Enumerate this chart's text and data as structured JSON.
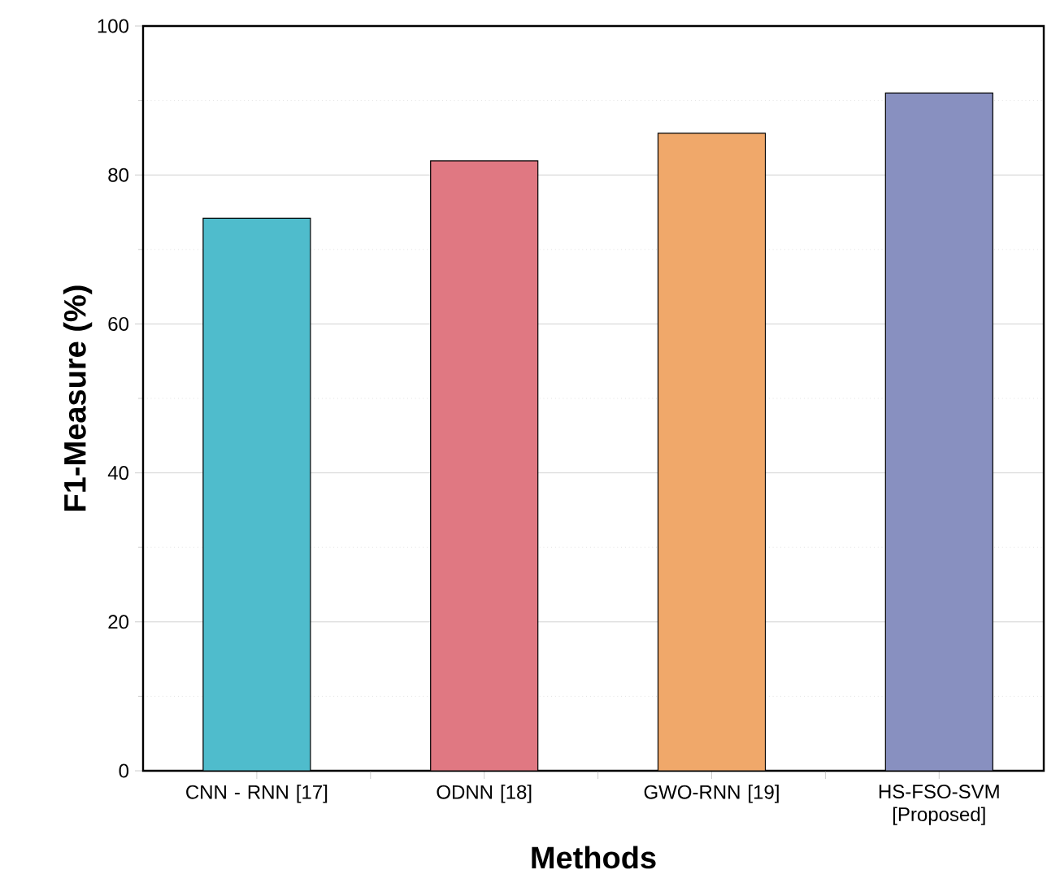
{
  "chart_data": {
    "type": "bar",
    "xlabel": "Methods",
    "ylabel": "F1-Measure (%)",
    "categories": [
      "CNN - RNN [17]",
      "ODNN [18]",
      "GWO-RNN [19]",
      "HS-FSO-SVM [Proposed]"
    ],
    "values": [
      74.2,
      81.9,
      85.6,
      91.0
    ],
    "colors": [
      "#4fbccc",
      "#e07882",
      "#f0a86a",
      "#8890c0"
    ],
    "ylim": [
      0,
      100
    ],
    "yticks": [
      0,
      20,
      40,
      60,
      80,
      100
    ],
    "grid": "y"
  }
}
